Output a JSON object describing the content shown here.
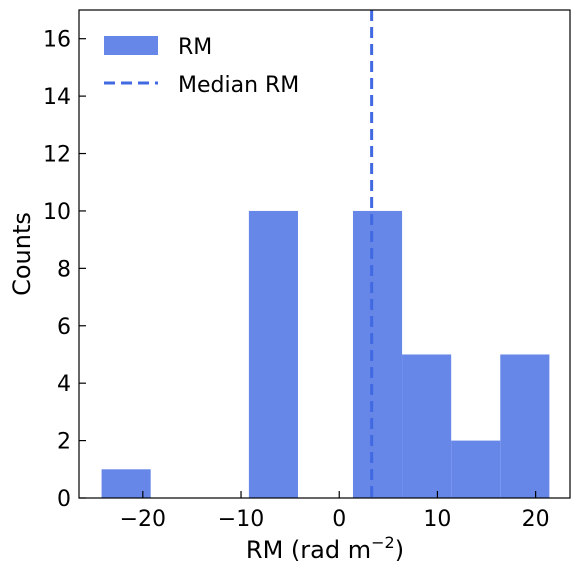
{
  "chart_data": {
    "type": "bar",
    "title": "",
    "xlabel_main": "RM (rad m",
    "xlabel_sup": "−2",
    "xlabel_end": ")",
    "ylabel": "Counts",
    "bins": [
      {
        "x0": -24.2,
        "x1": -19.2,
        "count": 1
      },
      {
        "x0": -19.2,
        "x1": -14.2,
        "count": 0
      },
      {
        "x0": -14.2,
        "x1": -9.2,
        "count": 0
      },
      {
        "x0": -9.2,
        "x1": -4.2,
        "count": 10
      },
      {
        "x0": -4.2,
        "x1": 0.8,
        "count": 0
      },
      {
        "x0": 1.4,
        "x1": 6.4,
        "count": 10
      },
      {
        "x0": 6.4,
        "x1": 11.4,
        "count": 5
      },
      {
        "x0": 11.4,
        "x1": 16.4,
        "count": 2
      },
      {
        "x0": 16.4,
        "x1": 21.4,
        "count": 5
      }
    ],
    "median_rm": 3.3,
    "xlim": [
      -26.5,
      23.5
    ],
    "ylim": [
      0,
      17
    ],
    "xticks": [
      -20,
      -10,
      0,
      10,
      20
    ],
    "xtick_labels": [
      "−20",
      "−10",
      "0",
      "10",
      "20"
    ],
    "yticks": [
      0,
      2,
      4,
      6,
      8,
      10,
      12,
      14,
      16
    ],
    "ytick_labels": [
      "0",
      "2",
      "4",
      "6",
      "8",
      "10",
      "12",
      "14",
      "16"
    ],
    "grid": false,
    "legend_position": "top-left",
    "legend": [
      {
        "label": "RM",
        "kind": "patch"
      },
      {
        "label": "Median RM",
        "kind": "dashed-line"
      }
    ],
    "colors": {
      "bar": "#6687e8",
      "median_line": "#4169e1"
    }
  }
}
